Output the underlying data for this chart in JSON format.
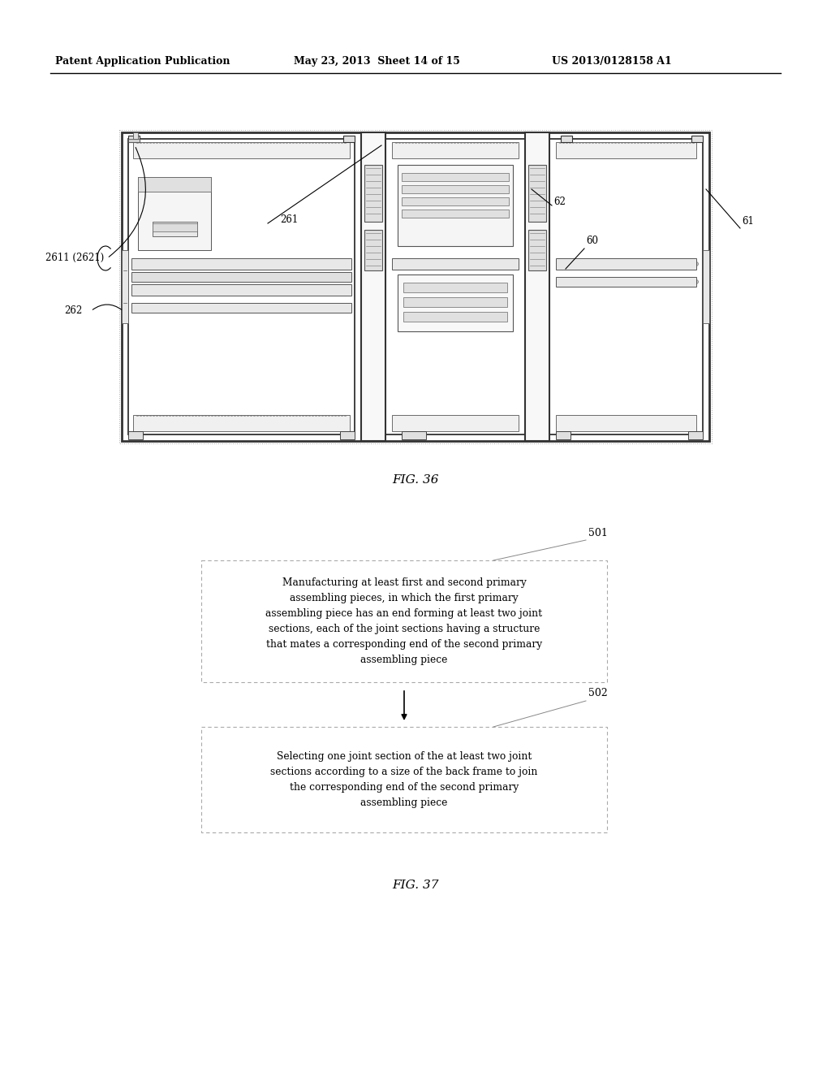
{
  "header_left": "Patent Application Publication",
  "header_mid": "May 23, 2013  Sheet 14 of 15",
  "header_right": "US 2013/0128158 A1",
  "fig36_label": "FIG. 36",
  "fig37_label": "FIG. 37",
  "box501_label": "501",
  "box502_label": "502",
  "box501_text": "Manufacturing at least first and second primary\nassembling pieces, in which the first primary\nassembling piece has an end forming at least two joint\nsections, each of the joint sections having a structure\nthat mates a corresponding end of the second primary\nassembling piece",
  "box502_text": "Selecting one joint section of the at least two joint\nsections according to a size of the back frame to join\nthe corresponding end of the second primary\nassembling piece",
  "label_2611": "2611 (2621)",
  "label_261": "261",
  "label_262": "262",
  "label_61": "61",
  "label_62": "62",
  "label_60": "60",
  "bg_color": "#ffffff",
  "line_color": "#000000",
  "text_color": "#000000"
}
